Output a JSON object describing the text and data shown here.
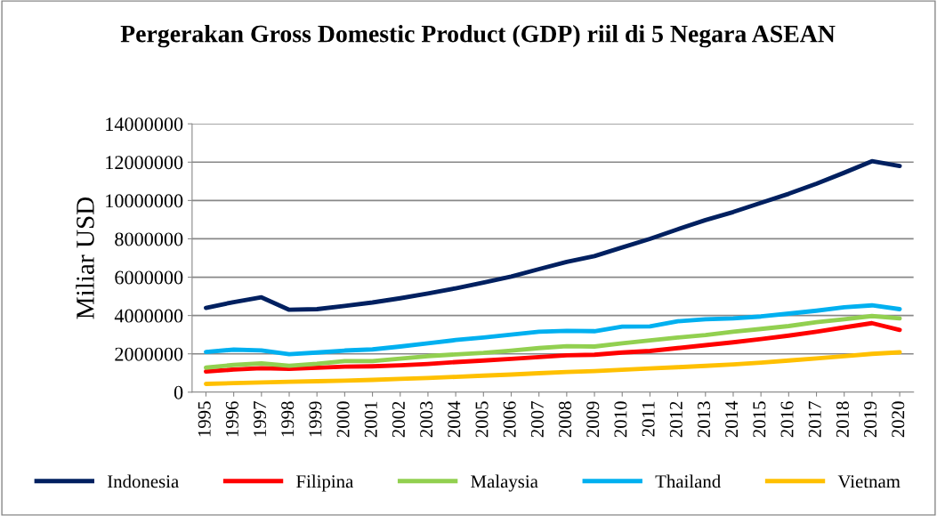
{
  "chart_data": {
    "type": "line",
    "title": "Pergerakan Gross Domestic Product (GDP) riil di 5 Negara ASEAN",
    "ylabel": "Miliar USD",
    "categories": [
      "1995",
      "1996",
      "1997",
      "1998",
      "1999",
      "2000",
      "2001",
      "2002",
      "2003",
      "2004",
      "2005",
      "2006",
      "2007",
      "2008",
      "2009",
      "2010",
      "2011",
      "2012",
      "2013",
      "2014",
      "2015",
      "2016",
      "2017",
      "2018",
      "2019",
      "2020"
    ],
    "series": [
      {
        "name": "Indonesia",
        "color": "#002060",
        "values": [
          4400000,
          4700000,
          4950000,
          4300000,
          4330000,
          4500000,
          4680000,
          4900000,
          5150000,
          5420000,
          5720000,
          6030000,
          6420000,
          6800000,
          7100000,
          7550000,
          8000000,
          8500000,
          8980000,
          9400000,
          9880000,
          10350000,
          10880000,
          11450000,
          12050000,
          11800000
        ]
      },
      {
        "name": "Filipina",
        "color": "#ff0000",
        "values": [
          1080000,
          1180000,
          1250000,
          1220000,
          1270000,
          1330000,
          1350000,
          1400000,
          1470000,
          1570000,
          1650000,
          1740000,
          1830000,
          1920000,
          1950000,
          2070000,
          2150000,
          2300000,
          2450000,
          2600000,
          2770000,
          2950000,
          3150000,
          3380000,
          3600000,
          3250000
        ]
      },
      {
        "name": "Malaysia",
        "color": "#92d050",
        "values": [
          1280000,
          1420000,
          1500000,
          1380000,
          1480000,
          1620000,
          1620000,
          1750000,
          1880000,
          1970000,
          2050000,
          2170000,
          2300000,
          2400000,
          2380000,
          2550000,
          2700000,
          2850000,
          2980000,
          3150000,
          3300000,
          3450000,
          3650000,
          3800000,
          3970000,
          3850000
        ]
      },
      {
        "name": "Thailand",
        "color": "#00b0f0",
        "values": [
          2100000,
          2220000,
          2180000,
          1980000,
          2070000,
          2170000,
          2230000,
          2380000,
          2550000,
          2720000,
          2850000,
          3000000,
          3150000,
          3200000,
          3180000,
          3420000,
          3430000,
          3700000,
          3800000,
          3850000,
          3950000,
          4100000,
          4250000,
          4430000,
          4530000,
          4330000
        ]
      },
      {
        "name": "Vietnam",
        "color": "#ffc000",
        "values": [
          430000,
          470000,
          510000,
          540000,
          570000,
          600000,
          640000,
          690000,
          740000,
          800000,
          860000,
          920000,
          990000,
          1050000,
          1100000,
          1170000,
          1240000,
          1300000,
          1370000,
          1450000,
          1540000,
          1650000,
          1760000,
          1880000,
          2000000,
          2080000
        ]
      }
    ],
    "ylim": [
      0,
      14000000
    ],
    "yticks": [
      0,
      2000000,
      4000000,
      6000000,
      8000000,
      10000000,
      12000000,
      14000000
    ],
    "grid": "y",
    "legend": "bottom",
    "marker": "none",
    "line_style": "solid"
  }
}
